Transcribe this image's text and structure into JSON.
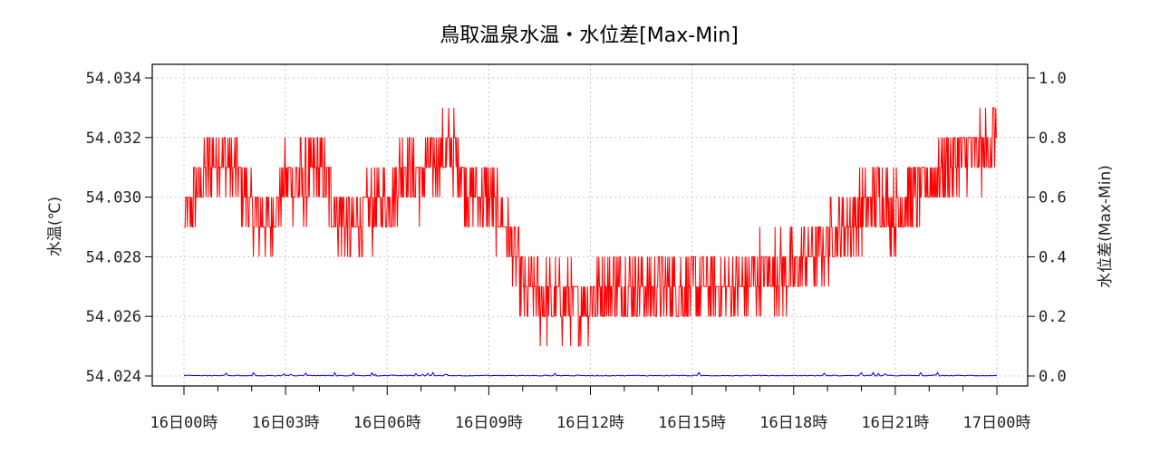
{
  "chart_data": {
    "type": "line",
    "title": "鳥取温泉水温・水位差[Max-Min]",
    "ylabel_left": "水温(℃)",
    "ylabel_right": "水位差(Max-Min)",
    "x_ticks": [
      "16日00時",
      "16日03時",
      "16日06時",
      "16日09時",
      "16日12時",
      "16日15時",
      "16日18時",
      "16日21時",
      "17日00時"
    ],
    "x_range_hours": [
      0,
      24
    ],
    "ylim_left": [
      54.024,
      54.034
    ],
    "yticks_left": [
      "54.024",
      "54.026",
      "54.028",
      "54.030",
      "54.032",
      "54.034"
    ],
    "ylim_right": [
      0,
      1
    ],
    "yticks_right": [
      "0.0",
      "0.2",
      "0.4",
      "0.6",
      "0.8",
      "1.0"
    ],
    "grid": true,
    "series": [
      {
        "axis": "left",
        "color": "#ff0000",
        "x_hours": [
          0,
          0.5,
          1,
          1.5,
          2,
          2.5,
          3,
          3.5,
          4,
          4.5,
          5,
          5.5,
          6,
          6.5,
          7,
          7.5,
          8,
          8.5,
          9,
          9.5,
          10,
          10.5,
          11,
          11.5,
          12,
          12.5,
          13,
          13.5,
          14,
          14.5,
          15,
          15.5,
          16,
          16.5,
          17,
          17.5,
          18,
          18.5,
          19,
          19.5,
          20,
          20.5,
          21,
          21.5,
          22,
          22.5,
          23,
          23.5,
          24
        ],
        "y_mean": [
          54.029,
          54.0305,
          54.0315,
          54.031,
          54.0295,
          54.029,
          54.0305,
          54.0305,
          54.031,
          54.0295,
          54.029,
          54.0295,
          54.03,
          54.031,
          54.0305,
          54.0315,
          54.0315,
          54.03,
          54.03,
          54.029,
          54.027,
          54.0265,
          54.0265,
          54.0265,
          54.0265,
          54.027,
          54.027,
          54.027,
          54.027,
          54.027,
          54.027,
          54.027,
          54.027,
          54.027,
          54.0275,
          54.0275,
          54.0275,
          54.028,
          54.0285,
          54.029,
          54.0295,
          54.03,
          54.0295,
          54.03,
          54.0305,
          54.031,
          54.0315,
          54.0315,
          54.032
        ],
        "amplitude": 0.0012
      },
      {
        "axis": "right",
        "color": "#0000cc",
        "x_hours": [
          0,
          24
        ],
        "y": [
          0.0,
          0.0
        ]
      }
    ]
  }
}
